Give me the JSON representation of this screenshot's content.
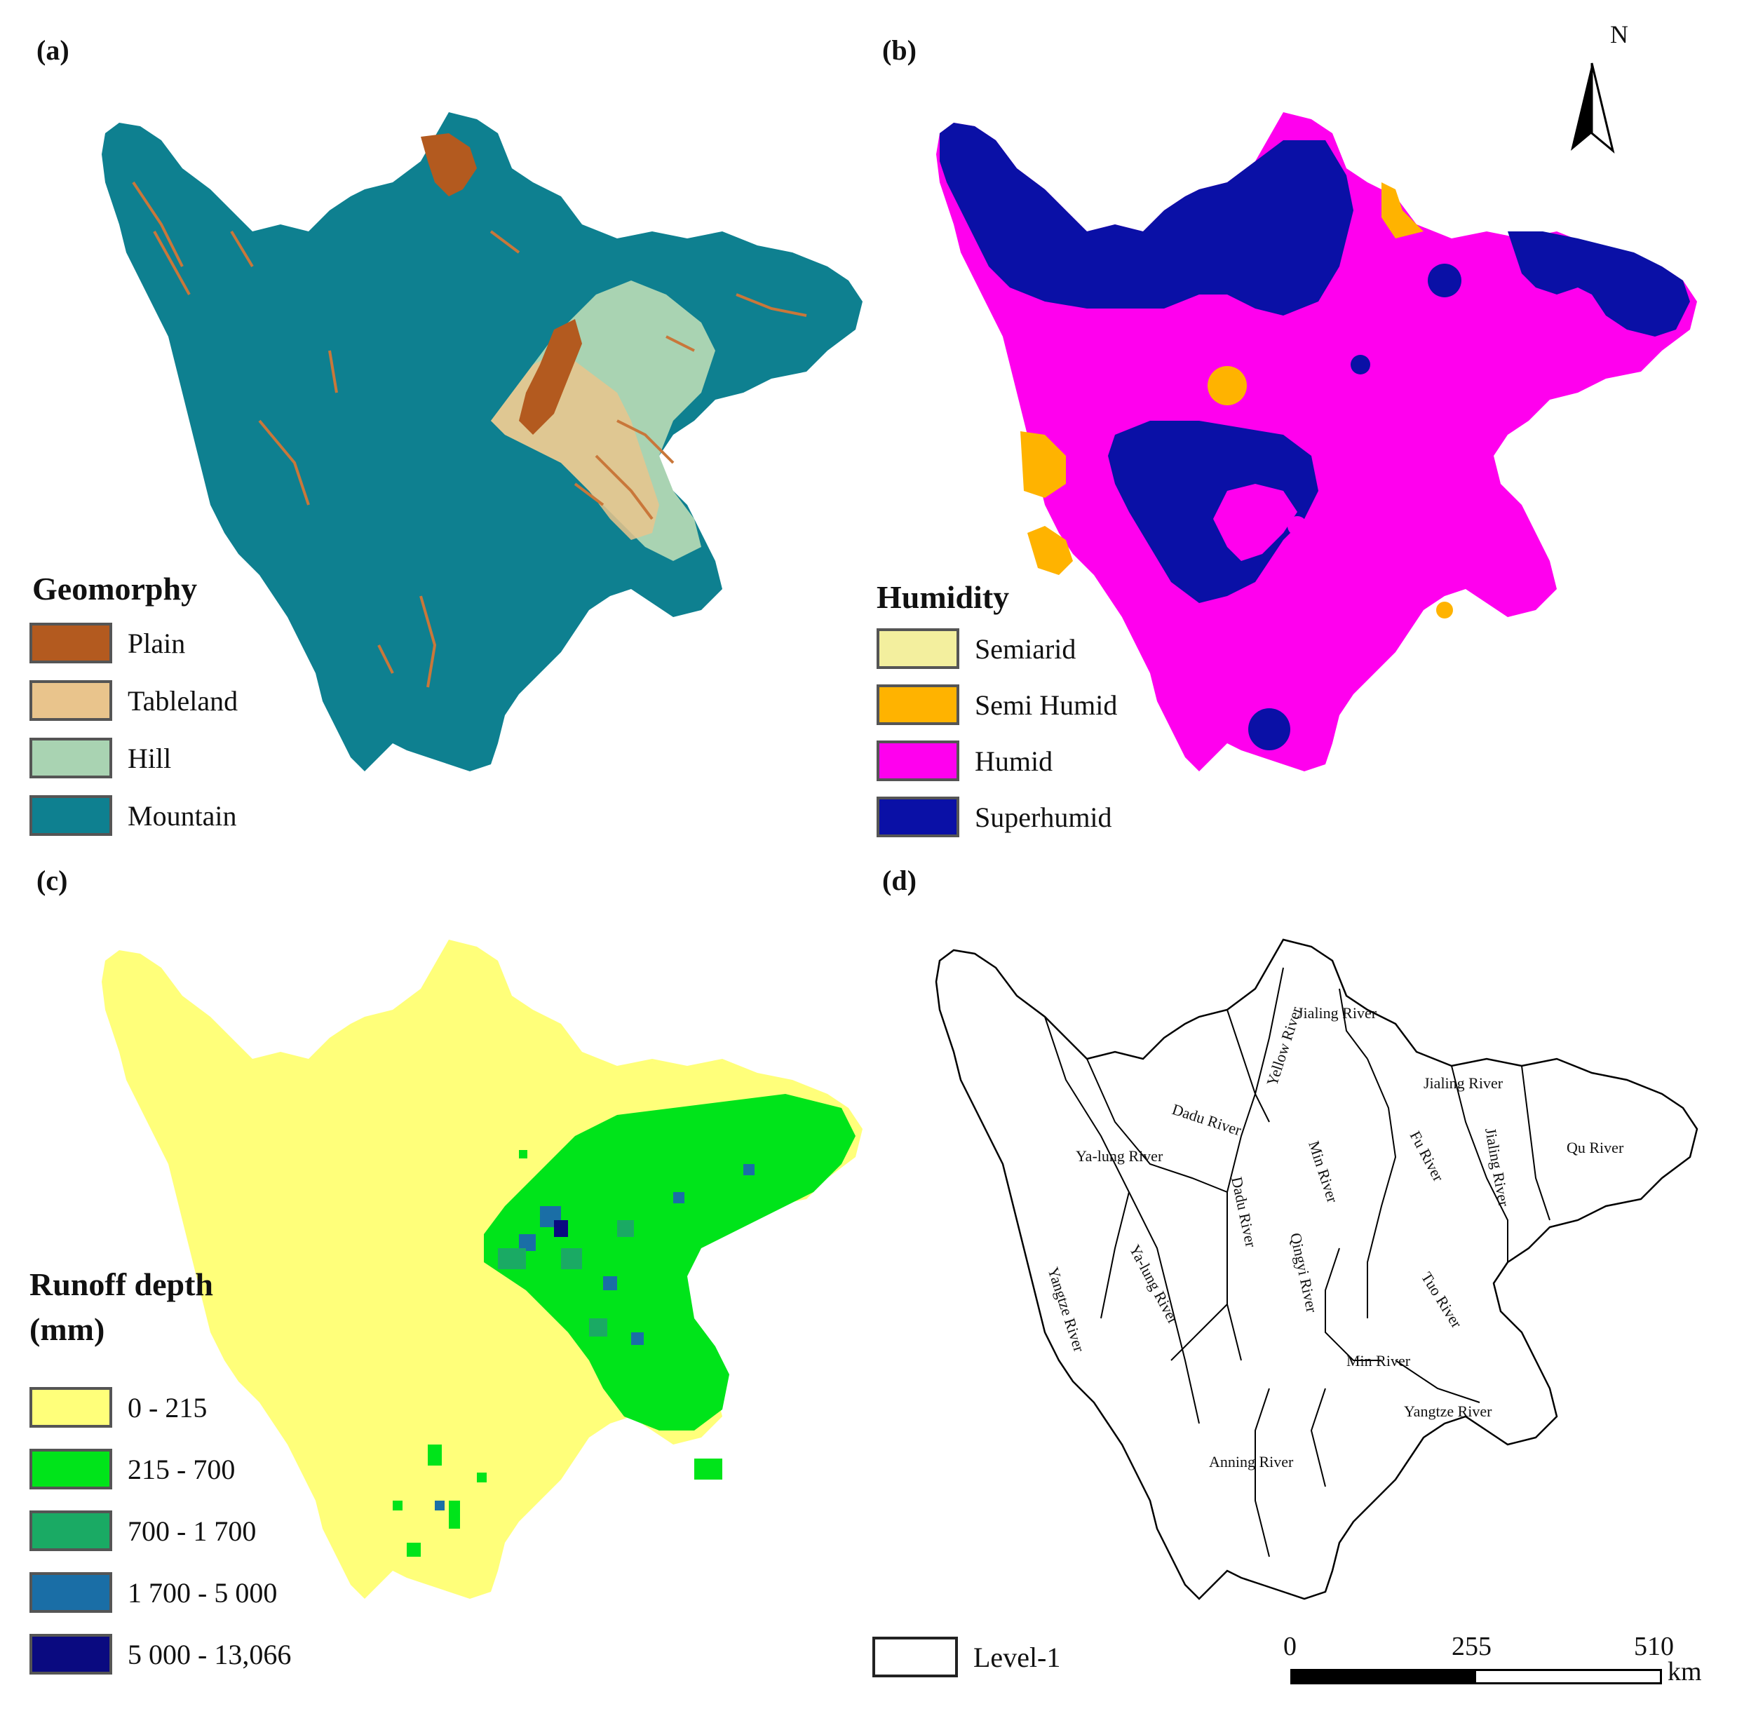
{
  "panels": {
    "a": {
      "label": "(a)",
      "legend_title": "Geomorphy",
      "classes": [
        {
          "name": "Plain",
          "color": "#b35a1f"
        },
        {
          "name": "Tableland",
          "color": "#e9c48c"
        },
        {
          "name": "Hill",
          "color": "#a9d3b2"
        },
        {
          "name": "Mountain",
          "color": "#0e8090"
        }
      ]
    },
    "b": {
      "label": "(b)",
      "legend_title": "Humidity",
      "classes": [
        {
          "name": "Semiarid",
          "color": "#f3ef9e"
        },
        {
          "name": "Semi Humid",
          "color": "#ffb300"
        },
        {
          "name": "Humid",
          "color": "#ff00ee"
        },
        {
          "name": "Superhumid",
          "color": "#0a10a6"
        }
      ],
      "north_label": "N"
    },
    "c": {
      "label": "(c)",
      "legend_title_line1": "Runoff depth",
      "legend_title_line2": "(mm)",
      "classes": [
        {
          "name": "0 - 215",
          "color": "#ffff7a"
        },
        {
          "name": "215 - 700",
          "color": "#00e41a"
        },
        {
          "name": "700 - 1 700",
          "color": "#1aaa64"
        },
        {
          "name": "1 700 - 5 000",
          "color": "#1a6ea6"
        },
        {
          "name": "5 000 - 13,066",
          "color": "#0a0a80"
        }
      ]
    },
    "d": {
      "label": "(d)",
      "legend_item": "Level-1",
      "rivers": [
        "Jialing River",
        "Yellow River",
        "Jialing River",
        "Dadu River",
        "Ya-lung River",
        "Min River",
        "Fu River",
        "Jialing River",
        "Qu River",
        "Dadu River",
        "Qingyi River",
        "Yangtze River",
        "Ya-lung River",
        "Tuo River",
        "Min River",
        "Yangtze River",
        "Anning River"
      ],
      "scale": {
        "ticks": [
          "0",
          "255",
          "510"
        ],
        "unit": "km"
      }
    }
  }
}
